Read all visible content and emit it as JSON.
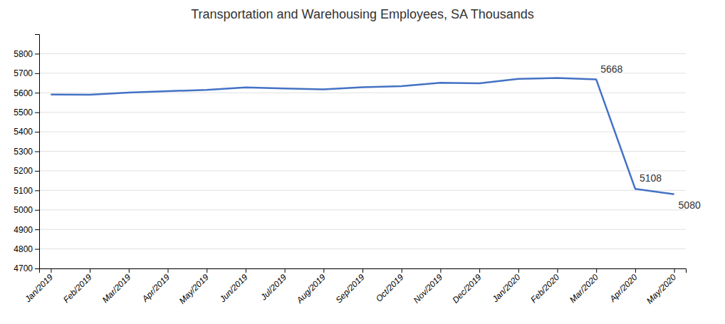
{
  "chart_data": {
    "type": "line",
    "title": "Transportation and Warehousing Employees, SA Thousands",
    "categories": [
      "Jan/2019",
      "Feb/2019",
      "Mar/2019",
      "Apr/2019",
      "May/2019",
      "Jun/2019",
      "Jul/2019",
      "Aug/2019",
      "Sep/2019",
      "Oct/2019",
      "Nov/2019",
      "Dec/2019",
      "Jan/2020",
      "Feb/2020",
      "Mar/2020",
      "Apr/2020",
      "May/2020"
    ],
    "values": [
      5591,
      5590,
      5601,
      5608,
      5615,
      5627,
      5622,
      5617,
      5628,
      5634,
      5651,
      5648,
      5671,
      5676,
      5668,
      5108,
      5080
    ],
    "color": "#4472C4",
    "ylim": [
      4700,
      5900
    ],
    "yticks": [
      4700,
      4800,
      4900,
      5000,
      5100,
      5200,
      5300,
      5400,
      5500,
      5600,
      5700,
      5800
    ],
    "grid": true,
    "annotations": [
      {
        "x": "Mar/2020",
        "y": 5668,
        "text": "5668"
      },
      {
        "x": "Apr/2020",
        "y": 5108,
        "text": "5108"
      },
      {
        "x": "May/2020",
        "y": 5080,
        "text": "5080"
      }
    ]
  }
}
